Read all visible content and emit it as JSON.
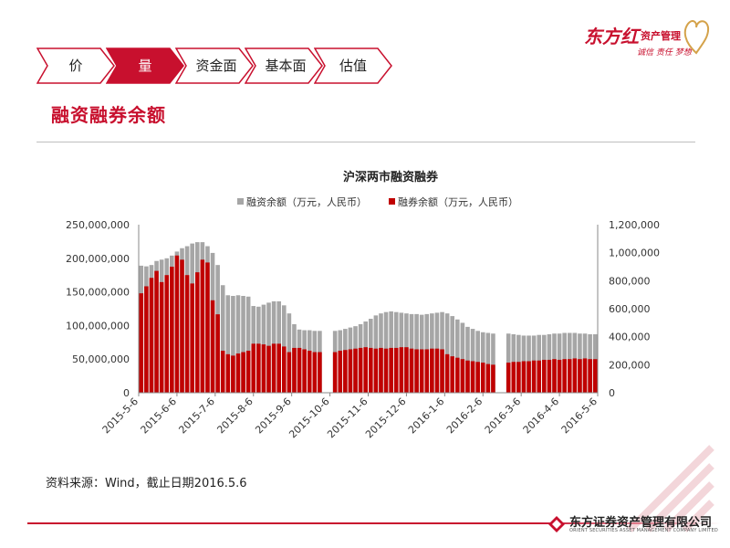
{
  "nav": {
    "tabs": [
      {
        "label": "价",
        "active": false
      },
      {
        "label": "量",
        "active": true
      },
      {
        "label": "资金面",
        "active": false
      },
      {
        "label": "基本面",
        "active": false
      },
      {
        "label": "估值",
        "active": false
      }
    ]
  },
  "page": {
    "title": "融资融券余额",
    "source": "资料来源：Wind，截止日期2016.5.6"
  },
  "brand": {
    "main": "东方红",
    "sub": "资产管理",
    "tagline": "诚信 责任 梦想",
    "footer_name": "东方证券资产管理有限公司",
    "footer_en": "ORIENT SECURITIES ASSET MANAGEMENT COMPANY LIMITED"
  },
  "colors": {
    "accent": "#c8102e",
    "margin_bar": "#a6a6a6",
    "short_bar": "#c00000",
    "tab_border": "#c8102e",
    "tab_active_fill": "#c8102e"
  },
  "chart_data": {
    "type": "bar",
    "title": "沪深两市融资融券",
    "legend_position": "top",
    "x_tick_labels": [
      "2015-5-6",
      "2015-6-6",
      "2015-7-6",
      "2015-8-6",
      "2015-9-6",
      "2015-10-6",
      "2015-11-6",
      "2015-12-6",
      "2016-1-6",
      "2016-2-6",
      "2016-3-6",
      "2016-4-6",
      "2016-5-6"
    ],
    "y_left": {
      "ticks": [
        "0",
        "50,000,000",
        "100,000,000",
        "150,000,000",
        "200,000,000",
        "250,000,000"
      ],
      "min": 0,
      "max": 250000000
    },
    "y_right": {
      "ticks": [
        "0",
        "200,000",
        "400,000",
        "600,000",
        "800,000",
        "1,000,000",
        "1,200,000"
      ],
      "min": 0,
      "max": 1200000
    },
    "series": [
      {
        "name": "融资余额（万元，人民币）",
        "axis": "left",
        "values": [
          189000000,
          188000000,
          190000000,
          196000000,
          198000000,
          200000000,
          204000000,
          210000000,
          215000000,
          218000000,
          222000000,
          224000000,
          224000000,
          218000000,
          208000000,
          190000000,
          160000000,
          145000000,
          144000000,
          145000000,
          144000000,
          143000000,
          129000000,
          128000000,
          131000000,
          134000000,
          136000000,
          136000000,
          130000000,
          118000000,
          102000000,
          94000000,
          93000000,
          93000000,
          92000000,
          92000000,
          null,
          null,
          92000000,
          93000000,
          95000000,
          97000000,
          99000000,
          102000000,
          106000000,
          110000000,
          115000000,
          118000000,
          120000000,
          121000000,
          120000000,
          119000000,
          118000000,
          117000000,
          117000000,
          116000000,
          117000000,
          118000000,
          119000000,
          120000000,
          118000000,
          114000000,
          109000000,
          104000000,
          98000000,
          95000000,
          92000000,
          90000000,
          89000000,
          88000000,
          null,
          null,
          88000000,
          87000000,
          86000000,
          85000000,
          85000000,
          85000000,
          86000000,
          86000000,
          87000000,
          88000000,
          88000000,
          89000000,
          89000000,
          89000000,
          88000000,
          88000000,
          87000000,
          87000000
        ]
      },
      {
        "name": "融券余额（万元，人民币）",
        "axis": "right",
        "values": [
          710000,
          760000,
          820000,
          870000,
          790000,
          840000,
          900000,
          980000,
          950000,
          840000,
          780000,
          860000,
          950000,
          930000,
          660000,
          560000,
          300000,
          275000,
          265000,
          280000,
          290000,
          300000,
          350000,
          350000,
          345000,
          335000,
          350000,
          350000,
          330000,
          290000,
          320000,
          320000,
          310000,
          300000,
          290000,
          290000,
          null,
          null,
          290000,
          300000,
          305000,
          310000,
          315000,
          320000,
          325000,
          320000,
          315000,
          320000,
          315000,
          320000,
          320000,
          325000,
          325000,
          315000,
          310000,
          310000,
          310000,
          315000,
          315000,
          310000,
          275000,
          260000,
          250000,
          240000,
          230000,
          225000,
          220000,
          215000,
          205000,
          200000,
          null,
          null,
          215000,
          220000,
          220000,
          225000,
          225000,
          230000,
          230000,
          235000,
          235000,
          240000,
          235000,
          240000,
          240000,
          245000,
          240000,
          245000,
          240000,
          240000
        ]
      }
    ]
  }
}
